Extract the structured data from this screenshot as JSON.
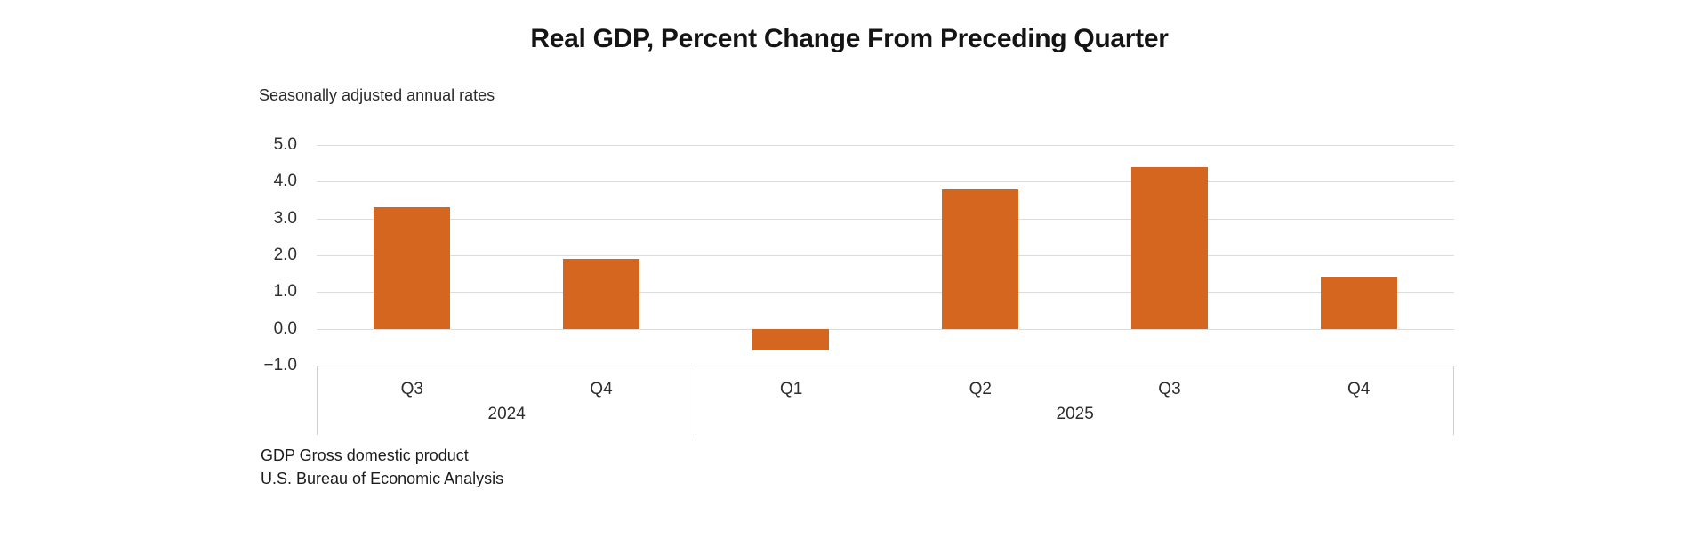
{
  "chart_data": {
    "type": "bar",
    "title": "Real GDP, Percent Change From Preceding Quarter",
    "subtitle": "Seasonally adjusted annual rates",
    "categories": [
      "Q3",
      "Q4",
      "Q1",
      "Q2",
      "Q3",
      "Q4"
    ],
    "values": [
      3.3,
      1.9,
      -0.6,
      3.8,
      4.4,
      1.4
    ],
    "groups": [
      {
        "label": "2024",
        "span": 2
      },
      {
        "label": "2025",
        "span": 4
      }
    ],
    "yticks": [
      5.0,
      4.0,
      3.0,
      2.0,
      1.0,
      0.0,
      -1.0
    ],
    "ytick_labels": [
      "5.0",
      "4.0",
      "3.0",
      "2.0",
      "1.0",
      "0.0",
      "−1.0"
    ],
    "ylim": [
      -1.0,
      5.0
    ],
    "xlabel": "",
    "ylabel": "",
    "grid": true,
    "legend": false,
    "bar_color": "#d4661f",
    "gridline_color": "#dcdcdc",
    "axisline_color": "#c4c4c4"
  },
  "footnotes": {
    "line1": "GDP Gross domestic product",
    "line2": "U.S. Bureau of Economic Analysis"
  }
}
